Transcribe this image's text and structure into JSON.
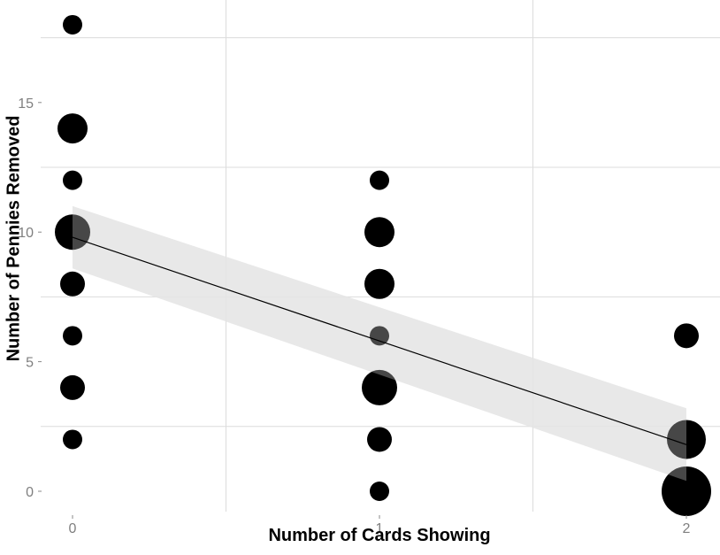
{
  "chart_data": {
    "type": "scatter",
    "title": "",
    "xlabel": "Number of Cards Showing",
    "ylabel": "Number of Pennies Removed",
    "x_ticks": [
      0,
      1,
      2
    ],
    "y_ticks": [
      0,
      5,
      10,
      15
    ],
    "xlim": [
      -0.1,
      2.1
    ],
    "ylim": [
      -1,
      18.5
    ],
    "grid": true,
    "legend": "none",
    "point_size_encodes": "count",
    "points": [
      {
        "x": 0,
        "y": 18,
        "size": 1
      },
      {
        "x": 0,
        "y": 14,
        "size": 3
      },
      {
        "x": 0,
        "y": 12,
        "size": 1
      },
      {
        "x": 0,
        "y": 10,
        "size": 4
      },
      {
        "x": 0,
        "y": 8,
        "size": 2
      },
      {
        "x": 0,
        "y": 6,
        "size": 1
      },
      {
        "x": 0,
        "y": 4,
        "size": 2
      },
      {
        "x": 0,
        "y": 2,
        "size": 1
      },
      {
        "x": 1,
        "y": 12,
        "size": 1
      },
      {
        "x": 1,
        "y": 10,
        "size": 3
      },
      {
        "x": 1,
        "y": 8,
        "size": 3
      },
      {
        "x": 1,
        "y": 6,
        "size": 1
      },
      {
        "x": 1,
        "y": 4,
        "size": 4
      },
      {
        "x": 1,
        "y": 2,
        "size": 2
      },
      {
        "x": 1,
        "y": 0,
        "size": 1
      },
      {
        "x": 2,
        "y": 6,
        "size": 2
      },
      {
        "x": 2,
        "y": 2,
        "size": 5
      },
      {
        "x": 2,
        "y": 0,
        "size": 7
      }
    ],
    "regression": {
      "method": "lm",
      "x": [
        0,
        2
      ],
      "y": [
        9.8,
        1.8
      ],
      "ci_lower": [
        8.6,
        0.4
      ],
      "ci_upper": [
        11.0,
        3.2
      ],
      "line_color": "#000000",
      "band_color": "#d9d9d9"
    },
    "colors": {
      "points": "#000000",
      "grid": "#dcdcdc",
      "tick_text": "#7f7f7f"
    }
  }
}
